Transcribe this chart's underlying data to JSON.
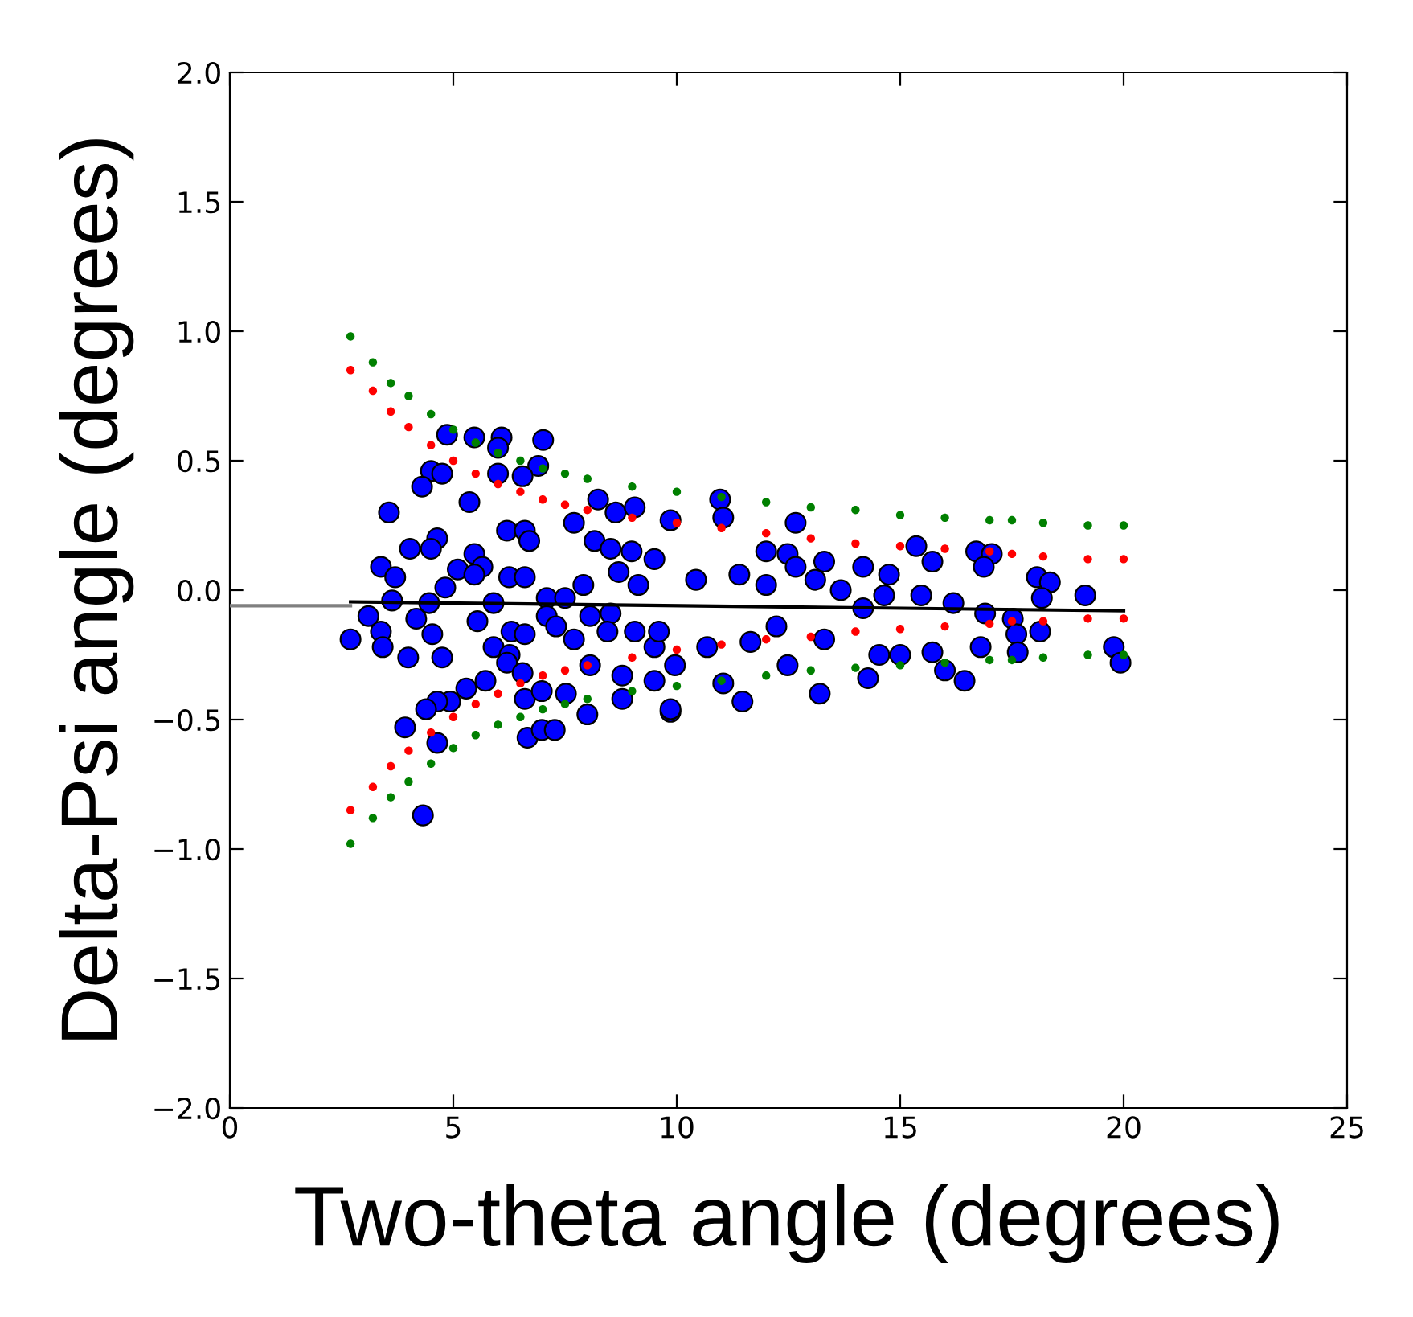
{
  "chart_data": {
    "type": "scatter",
    "xlabel": "Two-theta angle (degrees)",
    "ylabel": "Delta-Psi angle (degrees)",
    "xlim": [
      0,
      25
    ],
    "xticks": [
      0,
      5,
      10,
      15,
      20,
      25
    ],
    "ylim": [
      -2.0,
      2.0
    ],
    "yticks": [
      {
        "value": -2.0,
        "label": "−2.0"
      },
      {
        "value": -1.5,
        "label": "−1.5"
      },
      {
        "value": -1.0,
        "label": "−1.0"
      },
      {
        "value": -0.5,
        "label": "−0.5"
      },
      {
        "value": 0.0,
        "label": "0.0"
      },
      {
        "value": 0.5,
        "label": "0.5"
      },
      {
        "value": 1.0,
        "label": "1.0"
      },
      {
        "value": 1.5,
        "label": "1.5"
      },
      {
        "value": 2.0,
        "label": "2.0"
      }
    ],
    "grid": false,
    "legend": false,
    "series": [
      {
        "marker": "circle",
        "color": "#0000ff",
        "x": [
          4.86,
          5.47,
          6.08,
          7.01,
          6.0,
          6.9,
          4.5,
          4.75,
          4.3,
          6.0,
          6.55,
          3.56,
          5.36,
          4.03,
          4.64,
          4.5,
          3.38,
          3.7,
          4.82,
          5.1,
          5.47,
          5.65,
          5.47,
          6.2,
          6.6,
          6.7,
          6.25,
          6.6,
          3.63,
          4.46,
          3.1,
          4.17,
          3.38,
          2.7,
          3.42,
          4.53,
          3.99,
          4.75,
          5.54,
          5.9,
          6.3,
          5.9,
          6.26,
          6.6,
          7.09,
          7.09,
          7.5,
          7.3,
          6.2,
          6.55,
          6.6,
          6.98,
          7.52,
          8.0,
          6.66,
          6.98,
          7.27,
          5.72,
          5.29,
          4.93,
          4.64,
          4.39,
          3.92,
          4.64,
          4.32,
          7.91,
          8.24,
          8.63,
          9.06,
          7.7,
          8.16,
          8.52,
          8.99,
          8.7,
          9.14,
          8.06,
          8.52,
          9.06,
          8.45,
          7.7,
          8.06,
          8.78,
          9.5,
          8.78,
          9.5,
          9.86,
          10.97,
          11.04,
          12.66,
          9.86,
          12.0,
          12.48,
          13.3,
          14.17,
          14.75,
          15.36,
          15.72,
          16.7,
          17.05,
          16.87,
          18.06,
          18.35,
          18.17,
          19.14,
          9.5,
          10.43,
          11.4,
          12.0,
          12.66,
          13.1,
          13.67,
          14.17,
          14.64,
          15.47,
          16.19,
          16.9,
          17.52,
          17.6,
          18.13,
          17.63,
          19.78,
          19.93,
          9.6,
          9.96,
          9.86,
          10.68,
          11.04,
          11.47,
          11.65,
          12.48,
          13.2,
          13.3,
          14.28,
          14.53,
          15.0,
          15.72,
          16.0,
          16.44,
          16.8,
          12.23
        ],
        "values": [
          0.6,
          0.59,
          0.59,
          0.58,
          0.55,
          0.48,
          0.46,
          0.45,
          0.4,
          0.45,
          0.44,
          0.3,
          0.34,
          0.16,
          0.2,
          0.16,
          0.09,
          0.05,
          0.01,
          0.08,
          0.14,
          0.09,
          0.06,
          0.23,
          0.23,
          0.19,
          0.05,
          0.05,
          -0.04,
          -0.05,
          -0.1,
          -0.11,
          -0.16,
          -0.19,
          -0.22,
          -0.17,
          -0.26,
          -0.26,
          -0.12,
          -0.05,
          -0.16,
          -0.22,
          -0.25,
          -0.17,
          -0.03,
          -0.1,
          -0.03,
          -0.14,
          -0.28,
          -0.32,
          -0.42,
          -0.39,
          -0.4,
          -0.48,
          -0.57,
          -0.54,
          -0.54,
          -0.35,
          -0.38,
          -0.43,
          -0.43,
          -0.46,
          -0.53,
          -0.59,
          -0.87,
          0.02,
          0.35,
          0.3,
          0.32,
          0.26,
          0.19,
          0.16,
          0.15,
          0.07,
          0.02,
          -0.1,
          -0.09,
          -0.16,
          -0.16,
          -0.19,
          -0.29,
          -0.33,
          -0.22,
          -0.42,
          -0.35,
          -0.47,
          0.35,
          0.28,
          0.26,
          0.27,
          0.15,
          0.14,
          0.11,
          0.09,
          0.06,
          0.17,
          0.11,
          0.15,
          0.14,
          0.09,
          0.05,
          0.03,
          -0.03,
          -0.02,
          0.12,
          0.04,
          0.06,
          0.02,
          0.09,
          0.04,
          0.0,
          -0.07,
          -0.02,
          -0.02,
          -0.05,
          -0.09,
          -0.11,
          -0.17,
          -0.16,
          -0.24,
          -0.22,
          -0.28,
          -0.16,
          -0.29,
          -0.46,
          -0.22,
          -0.36,
          -0.43,
          -0.2,
          -0.29,
          -0.4,
          -0.19,
          -0.34,
          -0.25,
          -0.25,
          -0.24,
          -0.31,
          -0.35,
          -0.22,
          -0.14
        ]
      },
      {
        "type": "scatter",
        "marker": "circle",
        "color": "#008000",
        "x": [
          2.7,
          3.2,
          3.6,
          4,
          4.5,
          5,
          5.5,
          6,
          6.5,
          7,
          7.5,
          8,
          9,
          10,
          11,
          12,
          13,
          14,
          15,
          16,
          17,
          17.5,
          18.2,
          19.2,
          20
        ],
        "values": [
          0.98,
          0.88,
          0.8,
          0.75,
          0.68,
          0.62,
          0.57,
          0.53,
          0.5,
          0.47,
          0.45,
          0.43,
          0.4,
          0.38,
          0.36,
          0.34,
          0.32,
          0.31,
          0.29,
          0.28,
          0.27,
          0.27,
          0.26,
          0.25,
          0.25
        ]
      },
      {
        "type": "scatter",
        "marker": "circle",
        "color": "#ff0000",
        "x": [
          2.7,
          3.2,
          3.6,
          4,
          4.5,
          5,
          5.5,
          6,
          6.5,
          7,
          7.5,
          8,
          9,
          10,
          11,
          12,
          13,
          14,
          15,
          16,
          17,
          17.5,
          18.2,
          19.2,
          20
        ],
        "values": [
          0.85,
          0.77,
          0.69,
          0.63,
          0.56,
          0.5,
          0.45,
          0.41,
          0.38,
          0.35,
          0.33,
          0.31,
          0.28,
          0.26,
          0.24,
          0.22,
          0.2,
          0.18,
          0.17,
          0.16,
          0.15,
          0.14,
          0.13,
          0.12,
          0.12
        ]
      },
      {
        "type": "scatter",
        "marker": "circle",
        "color": "#ff0000",
        "x": [
          2.7,
          3.2,
          3.6,
          4,
          4.5,
          5,
          5.5,
          6,
          6.5,
          7,
          7.5,
          8,
          9,
          10,
          11,
          12,
          13,
          14,
          15,
          16,
          17,
          17.5,
          18.2,
          19.2,
          20
        ],
        "values": [
          -0.85,
          -0.76,
          -0.68,
          -0.62,
          -0.55,
          -0.49,
          -0.44,
          -0.4,
          -0.36,
          -0.33,
          -0.31,
          -0.29,
          -0.26,
          -0.23,
          -0.21,
          -0.19,
          -0.18,
          -0.16,
          -0.15,
          -0.14,
          -0.13,
          -0.12,
          -0.12,
          -0.11,
          -0.11
        ]
      },
      {
        "type": "scatter",
        "marker": "circle",
        "color": "#008000",
        "x": [
          2.7,
          3.2,
          3.6,
          4,
          4.5,
          5,
          5.5,
          6,
          6.5,
          7,
          7.5,
          8,
          9,
          10,
          11,
          12,
          13,
          14,
          15,
          16,
          17,
          17.5,
          18.2,
          19.2,
          20
        ],
        "values": [
          -0.98,
          -0.88,
          -0.8,
          -0.74,
          -0.67,
          -0.61,
          -0.56,
          -0.52,
          -0.49,
          -0.46,
          -0.44,
          -0.42,
          -0.39,
          -0.37,
          -0.35,
          -0.33,
          -0.31,
          -0.3,
          -0.29,
          -0.28,
          -0.27,
          -0.27,
          -0.26,
          -0.25,
          -0.25
        ]
      },
      {
        "type": "line",
        "marker": "none",
        "line_style": "solid",
        "color": "#000000",
        "x": [
          2.7,
          20
        ],
        "values": [
          -0.045,
          -0.08
        ]
      },
      {
        "type": "line",
        "marker": "none",
        "line_style": "solid",
        "color": "#808080",
        "x": [
          0,
          2.7
        ],
        "values": [
          -0.06,
          -0.06
        ]
      }
    ]
  }
}
